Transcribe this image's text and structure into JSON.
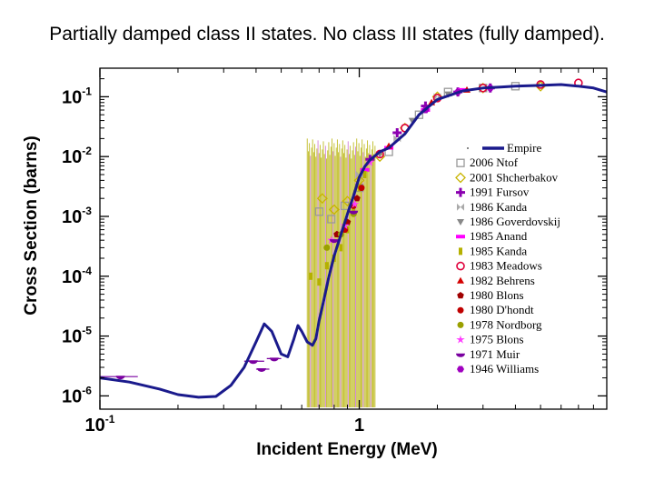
{
  "chart_data": {
    "type": "scatter",
    "title": "Partially damped class II states. No class III states (fully damped).",
    "xlabel": "Incident Energy (MeV)",
    "ylabel": "Cross Section (barns)",
    "xscale": "log",
    "yscale": "log",
    "xlim": [
      0.1,
      9
    ],
    "ylim": [
      6e-07,
      0.3
    ],
    "x_ticks": [
      {
        "value": 0.1,
        "base": "10",
        "exp": "-1"
      },
      {
        "value": 1,
        "base": "1",
        "exp": ""
      }
    ],
    "y_ticks": [
      {
        "value": 0.1,
        "base": "10",
        "exp": "-1"
      },
      {
        "value": 0.01,
        "base": "10",
        "exp": "-2"
      },
      {
        "value": 0.001,
        "base": "10",
        "exp": "-3"
      },
      {
        "value": 0.0001,
        "base": "10",
        "exp": "-4"
      },
      {
        "value": 1e-05,
        "base": "10",
        "exp": "-5"
      },
      {
        "value": 1e-06,
        "base": "10",
        "exp": "-6"
      }
    ],
    "legend_position": "right",
    "series": [
      {
        "name": "Empire",
        "kind": "line",
        "color": "#1a1a8c",
        "x": [
          0.1,
          0.13,
          0.17,
          0.2,
          0.24,
          0.28,
          0.32,
          0.36,
          0.4,
          0.43,
          0.46,
          0.5,
          0.53,
          0.56,
          0.58,
          0.6,
          0.63,
          0.66,
          0.68,
          0.7,
          0.73,
          0.76,
          0.8,
          0.85,
          0.9,
          0.95,
          1.0,
          1.05,
          1.1,
          1.2,
          1.3,
          1.5,
          1.7,
          2.0,
          2.5,
          3.0,
          3.5,
          4.0,
          5.0,
          6.0,
          7.0,
          8.0,
          9.0
        ],
        "y": [
          2e-06,
          1.7e-06,
          1.3e-06,
          1.05e-06,
          9.5e-07,
          9.8e-07,
          1.5e-06,
          3e-06,
          8e-06,
          1.6e-05,
          1.2e-05,
          5e-06,
          4.5e-06,
          9e-06,
          1.5e-05,
          1.2e-05,
          8e-06,
          7e-06,
          9e-06,
          1.8e-05,
          4e-05,
          9e-05,
          0.00022,
          0.0005,
          0.0011,
          0.0022,
          0.0045,
          0.0068,
          0.0088,
          0.012,
          0.014,
          0.024,
          0.05,
          0.09,
          0.125,
          0.14,
          0.145,
          0.15,
          0.155,
          0.16,
          0.15,
          0.14,
          0.12
        ]
      },
      {
        "name": "2006 Ntof",
        "kind": "points",
        "color": "#999999",
        "marker": "square",
        "x": [
          0.7,
          0.78,
          0.88,
          1.0,
          1.3,
          1.7,
          2.2,
          3.0,
          4.0
        ],
        "y": [
          0.0012,
          0.0009,
          0.0015,
          0.003,
          0.012,
          0.05,
          0.12,
          0.14,
          0.15
        ]
      },
      {
        "name": "2001 Shcherbakov",
        "kind": "points",
        "color": "#c8b400",
        "marker": "diamond",
        "x": [
          0.72,
          0.8,
          0.9,
          1.0,
          1.2,
          1.5,
          2.0,
          3.0,
          5.0
        ],
        "y": [
          0.002,
          0.0013,
          0.0018,
          0.004,
          0.01,
          0.03,
          0.1,
          0.14,
          0.15
        ]
      },
      {
        "name": "1991 Fursov",
        "kind": "points",
        "color": "#8b00b0",
        "marker": "plus",
        "x": [
          1.1,
          1.4,
          1.8,
          2.4,
          3.2
        ],
        "y": [
          0.009,
          0.025,
          0.07,
          0.12,
          0.14
        ]
      },
      {
        "name": "1986 Kanda",
        "kind": "points",
        "color": "#aaaaaa",
        "marker": "bowtie",
        "x": [
          1.0,
          1.4,
          2.0
        ],
        "y": [
          0.005,
          0.02,
          0.1
        ]
      },
      {
        "name": "1986 Goverdovskij",
        "kind": "points",
        "color": "#888888",
        "marker": "tri-down",
        "x": [
          1.2,
          1.6,
          2.2
        ],
        "y": [
          0.011,
          0.04,
          0.11
        ]
      },
      {
        "name": "1985 Anand",
        "kind": "points",
        "color": "#ff00ff",
        "marker": "bar",
        "x": [
          1.05,
          1.3,
          1.8,
          2.5
        ],
        "y": [
          0.006,
          0.014,
          0.06,
          0.13
        ]
      },
      {
        "name": "1985 Kanda",
        "kind": "points",
        "color": "#b5b000",
        "marker": "ibar",
        "x": [
          0.65,
          0.7,
          0.75,
          0.8,
          0.85,
          0.9,
          0.95,
          1.0,
          1.05
        ],
        "y": [
          0.0001,
          8e-05,
          0.00015,
          0.0002,
          0.0003,
          0.0006,
          0.0012,
          0.003,
          0.005
        ]
      },
      {
        "name": "1983 Meadows",
        "kind": "points",
        "color": "#e0003c",
        "marker": "circle-open",
        "x": [
          1.2,
          1.5,
          2.0,
          3.0,
          5.0,
          7.0
        ],
        "y": [
          0.011,
          0.03,
          0.095,
          0.14,
          0.16,
          0.17
        ]
      },
      {
        "name": "1982 Behrens",
        "kind": "points",
        "color": "#d40000",
        "marker": "triangle",
        "x": [
          1.3,
          1.9,
          2.6
        ],
        "y": [
          0.015,
          0.08,
          0.13
        ]
      },
      {
        "name": "1980 Blons",
        "kind": "points",
        "color": "#a00000",
        "marker": "pentagon",
        "x": [
          0.82,
          0.9,
          0.98
        ],
        "y": [
          0.0005,
          0.0008,
          0.002
        ]
      },
      {
        "name": "1980 D'hondt",
        "kind": "points",
        "color": "#c00000",
        "marker": "circle",
        "x": [
          0.88,
          0.95,
          1.02
        ],
        "y": [
          0.0006,
          0.0015,
          0.003
        ]
      },
      {
        "name": "1978 Nordborg",
        "kind": "points",
        "color": "#9aa000",
        "marker": "circle",
        "x": [
          0.75,
          0.85,
          0.95
        ],
        "y": [
          0.0003,
          0.0005,
          0.0011
        ]
      },
      {
        "name": "1975 Blons",
        "kind": "points",
        "color": "#ff3cff",
        "marker": "star",
        "x": [
          0.78,
          0.88,
          0.96,
          1.1
        ],
        "y": [
          0.0004,
          0.0007,
          0.0016,
          0.008
        ]
      },
      {
        "name": "1971 Muir",
        "kind": "points",
        "color": "#7a00a0",
        "marker": "bowl",
        "x": [
          0.12,
          0.39,
          0.42,
          0.47,
          0.8,
          0.95
        ],
        "y": [
          2.1e-06,
          3.8e-06,
          2.8e-06,
          4.2e-06,
          0.0004,
          0.0012
        ]
      },
      {
        "name": "1946 Williams",
        "kind": "points",
        "color": "#a000c0",
        "marker": "hexagon",
        "x": [
          1.8,
          2.4,
          3.2
        ],
        "y": [
          0.06,
          0.12,
          0.14
        ]
      }
    ]
  }
}
